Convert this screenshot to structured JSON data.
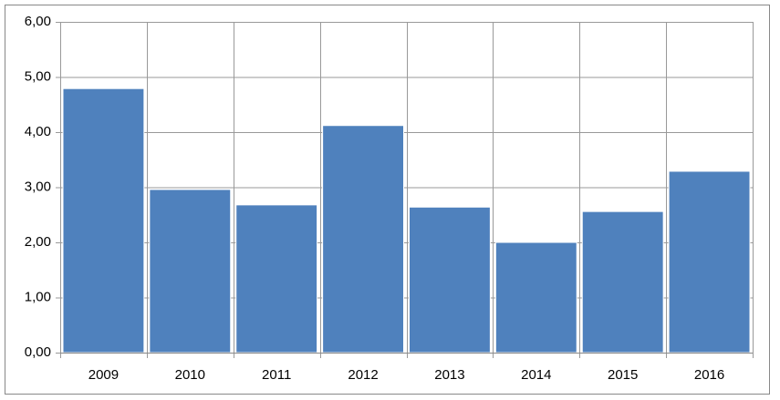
{
  "chart_data": {
    "type": "bar",
    "categories": [
      "2009",
      "2010",
      "2011",
      "2012",
      "2013",
      "2014",
      "2015",
      "2016"
    ],
    "values": [
      4.79,
      2.96,
      2.68,
      4.12,
      2.64,
      2.0,
      2.56,
      3.29
    ],
    "color": "#4f81bd",
    "ylim": [
      0,
      6
    ],
    "yticks": [
      {
        "value": 0,
        "label": "0,00"
      },
      {
        "value": 1,
        "label": "1,00"
      },
      {
        "value": 2,
        "label": "2,00"
      },
      {
        "value": 3,
        "label": "3,00"
      },
      {
        "value": 4,
        "label": "4,00"
      },
      {
        "value": 5,
        "label": "5,00"
      },
      {
        "value": 6,
        "label": "6,00"
      }
    ],
    "grid": true
  }
}
